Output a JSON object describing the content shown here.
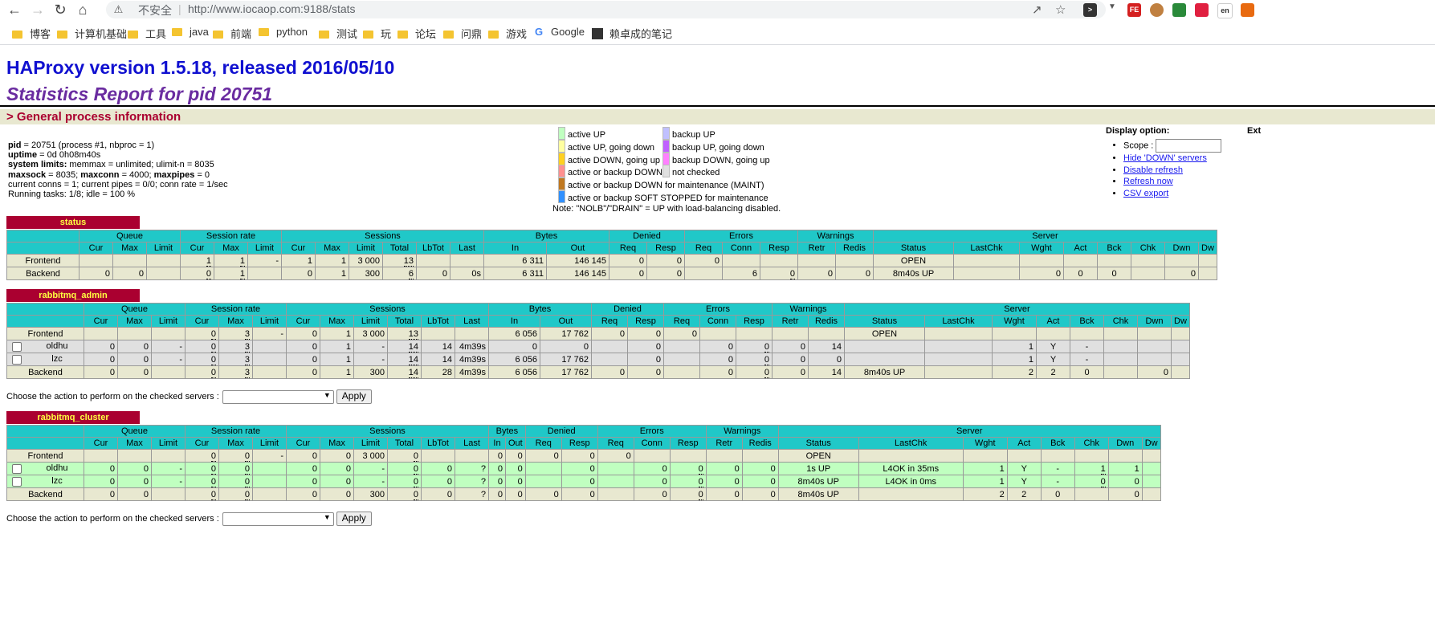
{
  "browser": {
    "insecure_label": "不安全",
    "url": "http://www.iocaop.com:9188/stats",
    "bookmarks": [
      {
        "label": "博客",
        "type": "folder"
      },
      {
        "label": "计算机基础",
        "type": "folder"
      },
      {
        "label": "工具",
        "type": "folder"
      },
      {
        "label": "java",
        "type": "folder"
      },
      {
        "label": "前端",
        "type": "folder"
      },
      {
        "label": "python",
        "type": "folder"
      },
      {
        "label": "测试",
        "type": "folder"
      },
      {
        "label": "玩",
        "type": "folder"
      },
      {
        "label": "论坛",
        "type": "folder"
      },
      {
        "label": "问鼎",
        "type": "folder"
      },
      {
        "label": "游戏",
        "type": "folder"
      },
      {
        "label": "Google",
        "type": "google"
      },
      {
        "label": "赖卓成的笔记",
        "type": "note"
      }
    ]
  },
  "page": {
    "title": "HAProxy version 1.5.18, released 2016/05/10",
    "subtitle": "Statistics Report for pid 20751",
    "section": "> General process information",
    "proc": {
      "pid_k": "pid",
      "pid_v": " = 20751 (process #1, nbproc = 1)",
      "uptime_k": "uptime",
      "uptime_v": " = 0d 0h08m40s",
      "limits_k": "system limits:",
      "limits_v": " memmax = unlimited; ulimit-n = 8035",
      "maxsock_k": "maxsock",
      "maxsock_v": " = 8035; ",
      "maxconn_k": "maxconn",
      "maxconn_v": " = 4000; ",
      "maxpipes_k": "maxpipes",
      "maxpipes_v": " = 0",
      "conns": "current conns = 1; current pipes = 0/0; conn rate = 1/sec",
      "tasks": "Running tasks: 1/8; idle = 100 %"
    },
    "legend": {
      "left": [
        {
          "label": "active UP",
          "color": "#c0ffc0"
        },
        {
          "label": "active UP, going down",
          "color": "#ffffa0"
        },
        {
          "label": "active DOWN, going up",
          "color": "#ffd020"
        },
        {
          "label": "active or backup DOWN",
          "color": "#ff9090"
        },
        {
          "label": "active or backup DOWN for maintenance (MAINT)",
          "color": "#c07820"
        },
        {
          "label": "active or backup SOFT STOPPED for maintenance",
          "color": "#3090ff"
        }
      ],
      "right": [
        {
          "label": "backup UP",
          "color": "#c0c0ff"
        },
        {
          "label": "backup UP, going down",
          "color": "#c060ff"
        },
        {
          "label": "backup DOWN, going up",
          "color": "#ff80ff"
        },
        {
          "label": "not checked",
          "color": "#e0e0e0"
        }
      ],
      "note": "Note: \"NOLB\"/\"DRAIN\" = UP with load-balancing disabled."
    },
    "display": {
      "title": "Display option:",
      "scope_label": "Scope :",
      "links": [
        "Hide 'DOWN' servers",
        "Disable refresh",
        "Refresh now",
        "CSV export"
      ]
    },
    "ext_title": "Ext",
    "action_label": "Choose the action to perform on the checked servers :",
    "apply_label": "Apply"
  },
  "headers": {
    "groups": [
      "Queue",
      "Session rate",
      "Sessions",
      "Bytes",
      "Denied",
      "Errors",
      "Warnings",
      "Server"
    ],
    "cols": [
      "Cur",
      "Max",
      "Limit",
      "Cur",
      "Max",
      "Limit",
      "Cur",
      "Max",
      "Limit",
      "Total",
      "LbTot",
      "Last",
      "In",
      "Out",
      "Req",
      "Resp",
      "Req",
      "Conn",
      "Resp",
      "Retr",
      "Redis",
      "Status",
      "LastChk",
      "Wght",
      "Act",
      "Bck",
      "Chk",
      "Dwn",
      "Dw"
    ]
  },
  "proxies": [
    {
      "name": "status",
      "rows": [
        {
          "kind": "fe",
          "name": "Frontend",
          "cb": false,
          "v": [
            "",
            "",
            "",
            "1",
            "1",
            "-",
            "1",
            "1",
            "3 000",
            "13",
            "",
            "",
            "6 311",
            "146 145",
            "0",
            "0",
            "0",
            "",
            "",
            "",
            "",
            "OPEN",
            "",
            "",
            "",
            "",
            "",
            "",
            ""
          ]
        },
        {
          "kind": "be",
          "name": "Backend",
          "cb": false,
          "v": [
            "0",
            "0",
            "",
            "0",
            "1",
            "",
            "0",
            "1",
            "300",
            "6",
            "0",
            "0s",
            "6 311",
            "146 145",
            "0",
            "0",
            "",
            "6",
            "0",
            "0",
            "0",
            "8m40s UP",
            "",
            "0",
            "0",
            "0",
            "",
            "0",
            ""
          ]
        }
      ]
    },
    {
      "name": "rabbitmq_admin",
      "rows": [
        {
          "kind": "fe",
          "name": "Frontend",
          "cb": false,
          "v": [
            "",
            "",
            "",
            "0",
            "3",
            "-",
            "0",
            "1",
            "3 000",
            "13",
            "",
            "",
            "6 056",
            "17 762",
            "0",
            "0",
            "0",
            "",
            "",
            "",
            "",
            "OPEN",
            "",
            "",
            "",
            "",
            "",
            "",
            ""
          ]
        },
        {
          "kind": "sv",
          "name": "oldhu",
          "cb": true,
          "v": [
            "0",
            "0",
            "-",
            "0",
            "3",
            "",
            "0",
            "1",
            "-",
            "14",
            "14",
            "4m39s",
            "0",
            "0",
            "",
            "0",
            "",
            "0",
            "0",
            "0",
            "14",
            "",
            "",
            "1",
            "Y",
            "-",
            "",
            "",
            ""
          ]
        },
        {
          "kind": "sv",
          "name": "lzc",
          "cb": true,
          "v": [
            "0",
            "0",
            "-",
            "0",
            "3",
            "",
            "0",
            "1",
            "-",
            "14",
            "14",
            "4m39s",
            "6 056",
            "17 762",
            "",
            "0",
            "",
            "0",
            "0",
            "0",
            "0",
            "",
            "",
            "1",
            "Y",
            "-",
            "",
            "",
            ""
          ]
        },
        {
          "kind": "be",
          "name": "Backend",
          "cb": false,
          "v": [
            "0",
            "0",
            "",
            "0",
            "3",
            "",
            "0",
            "1",
            "300",
            "14",
            "28",
            "4m39s",
            "6 056",
            "17 762",
            "0",
            "0",
            "",
            "0",
            "0",
            "0",
            "14",
            "8m40s UP",
            "",
            "2",
            "2",
            "0",
            "",
            "0",
            ""
          ]
        }
      ]
    },
    {
      "name": "rabbitmq_cluster",
      "rows": [
        {
          "kind": "fe",
          "name": "Frontend",
          "cb": false,
          "v": [
            "",
            "",
            "",
            "0",
            "0",
            "-",
            "0",
            "0",
            "3 000",
            "0",
            "",
            "",
            "0",
            "0",
            "0",
            "0",
            "0",
            "",
            "",
            "",
            "",
            "OPEN",
            "",
            "",
            "",
            "",
            "",
            "",
            ""
          ]
        },
        {
          "kind": "up",
          "name": "oldhu",
          "cb": true,
          "v": [
            "0",
            "0",
            "-",
            "0",
            "0",
            "",
            "0",
            "0",
            "-",
            "0",
            "0",
            "?",
            "0",
            "0",
            "",
            "0",
            "",
            "0",
            "0",
            "0",
            "0",
            "1s UP",
            "L4OK in 35ms",
            "1",
            "Y",
            "-",
            "1",
            "1",
            ""
          ]
        },
        {
          "kind": "up",
          "name": "lzc",
          "cb": true,
          "v": [
            "0",
            "0",
            "-",
            "0",
            "0",
            "",
            "0",
            "0",
            "-",
            "0",
            "0",
            "?",
            "0",
            "0",
            "",
            "0",
            "",
            "0",
            "0",
            "0",
            "0",
            "8m40s UP",
            "L4OK in 0ms",
            "1",
            "Y",
            "-",
            "0",
            "0",
            ""
          ]
        },
        {
          "kind": "be",
          "name": "Backend",
          "cb": false,
          "v": [
            "0",
            "0",
            "",
            "0",
            "0",
            "",
            "0",
            "0",
            "300",
            "0",
            "0",
            "?",
            "0",
            "0",
            "0",
            "0",
            "",
            "0",
            "0",
            "0",
            "0",
            "8m40s UP",
            "",
            "2",
            "2",
            "0",
            "",
            "0",
            ""
          ]
        }
      ]
    }
  ]
}
